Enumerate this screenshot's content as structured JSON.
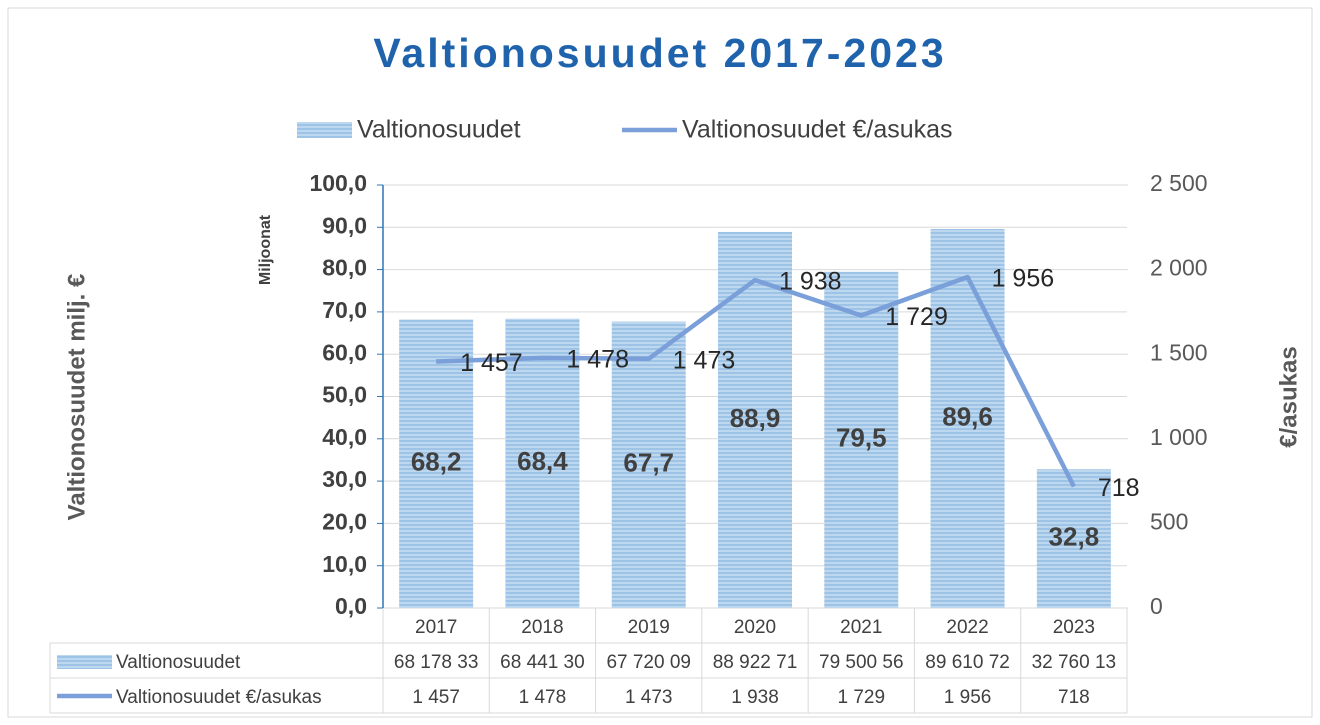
{
  "chart_data": {
    "type": "bar",
    "title": "Valtionosuudet 2017-2023",
    "y_label": "Valtionosuudet milj. €",
    "y_unit_label": "Miljoonat",
    "y2_label": "€/asukas",
    "categories": [
      "2017",
      "2018",
      "2019",
      "2020",
      "2021",
      "2022",
      "2023"
    ],
    "series": [
      {
        "name": "Valtionosuudet",
        "color": "#9dc3e6",
        "type": "bar",
        "values": [
          68.2,
          68.4,
          67.7,
          88.9,
          79.5,
          89.6,
          32.8
        ],
        "value_labels": [
          "68,2",
          "68,4",
          "67,7",
          "88,9",
          "79,5",
          "89,6",
          "32,8"
        ],
        "table_labels": [
          "68 178 33",
          "68 441 30",
          "67 720 09",
          "88 922 71",
          "79 500 56",
          "89 610 72",
          "32 760 13"
        ]
      },
      {
        "name": "Valtionosuudet €/asukas",
        "color": "#7a9fd9",
        "type": "line",
        "axis": "y2",
        "values": [
          1457,
          1478,
          1473,
          1938,
          1729,
          1956,
          718
        ],
        "value_labels": [
          "1 457",
          "1 478",
          "1 473",
          "1 938",
          "1 729",
          "1 956",
          "718"
        ]
      }
    ],
    "ylim": [
      0,
      100
    ],
    "yticks": [
      {
        "value": 0,
        "label": "0,0"
      },
      {
        "value": 10,
        "label": "10,0"
      },
      {
        "value": 20,
        "label": "20,0"
      },
      {
        "value": 30,
        "label": "30,0"
      },
      {
        "value": 40,
        "label": "40,0"
      },
      {
        "value": 50,
        "label": "50,0"
      },
      {
        "value": 60,
        "label": "60,0"
      },
      {
        "value": 70,
        "label": "70,0"
      },
      {
        "value": 80,
        "label": "80,0"
      },
      {
        "value": 90,
        "label": "90,0"
      },
      {
        "value": 100,
        "label": "100,0"
      }
    ],
    "y2lim": [
      0,
      2500
    ],
    "y2ticks": [
      0,
      500,
      {
        "value": 1000,
        "label": "1 000"
      },
      {
        "value": 1500,
        "label": "1 500"
      },
      {
        "value": 2000,
        "label": "2 000"
      },
      {
        "value": 2500,
        "label": "2 500"
      }
    ],
    "grid": true
  }
}
